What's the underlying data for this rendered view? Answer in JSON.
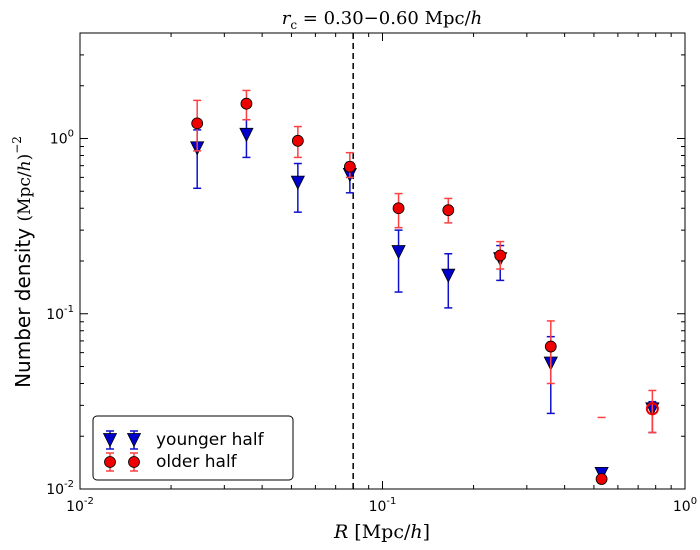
{
  "chart_data": {
    "type": "scatter",
    "title": "r_c = 0.30−0.60 Mpc/h",
    "title_parts": {
      "var": "r",
      "sub": "c",
      "rest": " = 0.30−0.60 Mpc/",
      "h": "h"
    },
    "xlabel": "R [Mpc/h]",
    "xlabel_parts": {
      "var": "R",
      "rest": " [Mpc/",
      "h": "h",
      "close": "]"
    },
    "ylabel": "Number density (Mpc/h)^-2",
    "ylabel_parts": {
      "text": "Number density ",
      "units": "(Mpc/",
      "h": "h",
      "close": ")",
      "exp": "−2"
    },
    "x_scale": "log",
    "y_scale": "log",
    "xlim": [
      0.01,
      1.0
    ],
    "ylim": [
      0.01,
      4.0
    ],
    "x_ticks": [
      {
        "value": 0.01,
        "base": "10",
        "exp": "-2"
      },
      {
        "value": 0.1,
        "base": "10",
        "exp": "-1"
      },
      {
        "value": 1.0,
        "base": "10",
        "exp": "0"
      }
    ],
    "y_ticks": [
      {
        "value": 0.01,
        "base": "10",
        "exp": "-2"
      },
      {
        "value": 0.1,
        "base": "10",
        "exp": "-1"
      },
      {
        "value": 1.0,
        "base": "10",
        "exp": "0"
      }
    ],
    "vline": {
      "x": 0.08,
      "style": "dashed",
      "color": "#000000"
    },
    "series": [
      {
        "name": "younger half",
        "marker": "triangle-down",
        "color": "#0000cc",
        "errorbar_color": "#1010cc",
        "points": [
          {
            "x": 0.0244,
            "y": 0.88,
            "lo": 0.52,
            "hi": 1.12
          },
          {
            "x": 0.0355,
            "y": 1.05,
            "lo": 0.78,
            "hi": 1.28
          },
          {
            "x": 0.0525,
            "y": 0.56,
            "lo": 0.38,
            "hi": 0.72
          },
          {
            "x": 0.078,
            "y": 0.62,
            "lo": 0.49,
            "hi": 0.73
          },
          {
            "x": 0.113,
            "y": 0.225,
            "lo": 0.133,
            "hi": 0.3
          },
          {
            "x": 0.165,
            "y": 0.165,
            "lo": 0.108,
            "hi": 0.22
          },
          {
            "x": 0.245,
            "y": 0.205,
            "lo": 0.155,
            "hi": 0.245
          },
          {
            "x": 0.36,
            "y": 0.052,
            "lo": 0.027,
            "hi": 0.074
          },
          {
            "x": 0.53,
            "y": 0.0122,
            "lo": 0.0118,
            "hi": 0.0126
          },
          {
            "x": 0.78,
            "y": 0.0285,
            "lo": 0.021,
            "hi": 0.0315
          }
        ]
      },
      {
        "name": "older half",
        "marker": "circle",
        "color": "#ee0000",
        "errorbar_color": "#ff4040",
        "points": [
          {
            "x": 0.0244,
            "y": 1.22,
            "lo": 0.85,
            "hi": 1.65
          },
          {
            "x": 0.0355,
            "y": 1.58,
            "lo": 1.28,
            "hi": 1.88
          },
          {
            "x": 0.0525,
            "y": 0.97,
            "lo": 0.78,
            "hi": 1.17
          },
          {
            "x": 0.078,
            "y": 0.69,
            "lo": 0.6,
            "hi": 0.83
          },
          {
            "x": 0.113,
            "y": 0.4,
            "lo": 0.31,
            "hi": 0.485
          },
          {
            "x": 0.165,
            "y": 0.39,
            "lo": 0.33,
            "hi": 0.455
          },
          {
            "x": 0.245,
            "y": 0.215,
            "lo": 0.18,
            "hi": 0.258
          },
          {
            "x": 0.36,
            "y": 0.065,
            "lo": 0.04,
            "hi": 0.091
          },
          {
            "x": 0.53,
            "y": 0.0114,
            "lo": null,
            "hi": 0.0256
          },
          {
            "x": 0.78,
            "y": 0.0287,
            "lo": 0.021,
            "hi": 0.0365,
            "hollow": true
          }
        ]
      }
    ],
    "legend": {
      "position": "bottom-left",
      "entries": [
        "younger half",
        "older half"
      ]
    }
  }
}
